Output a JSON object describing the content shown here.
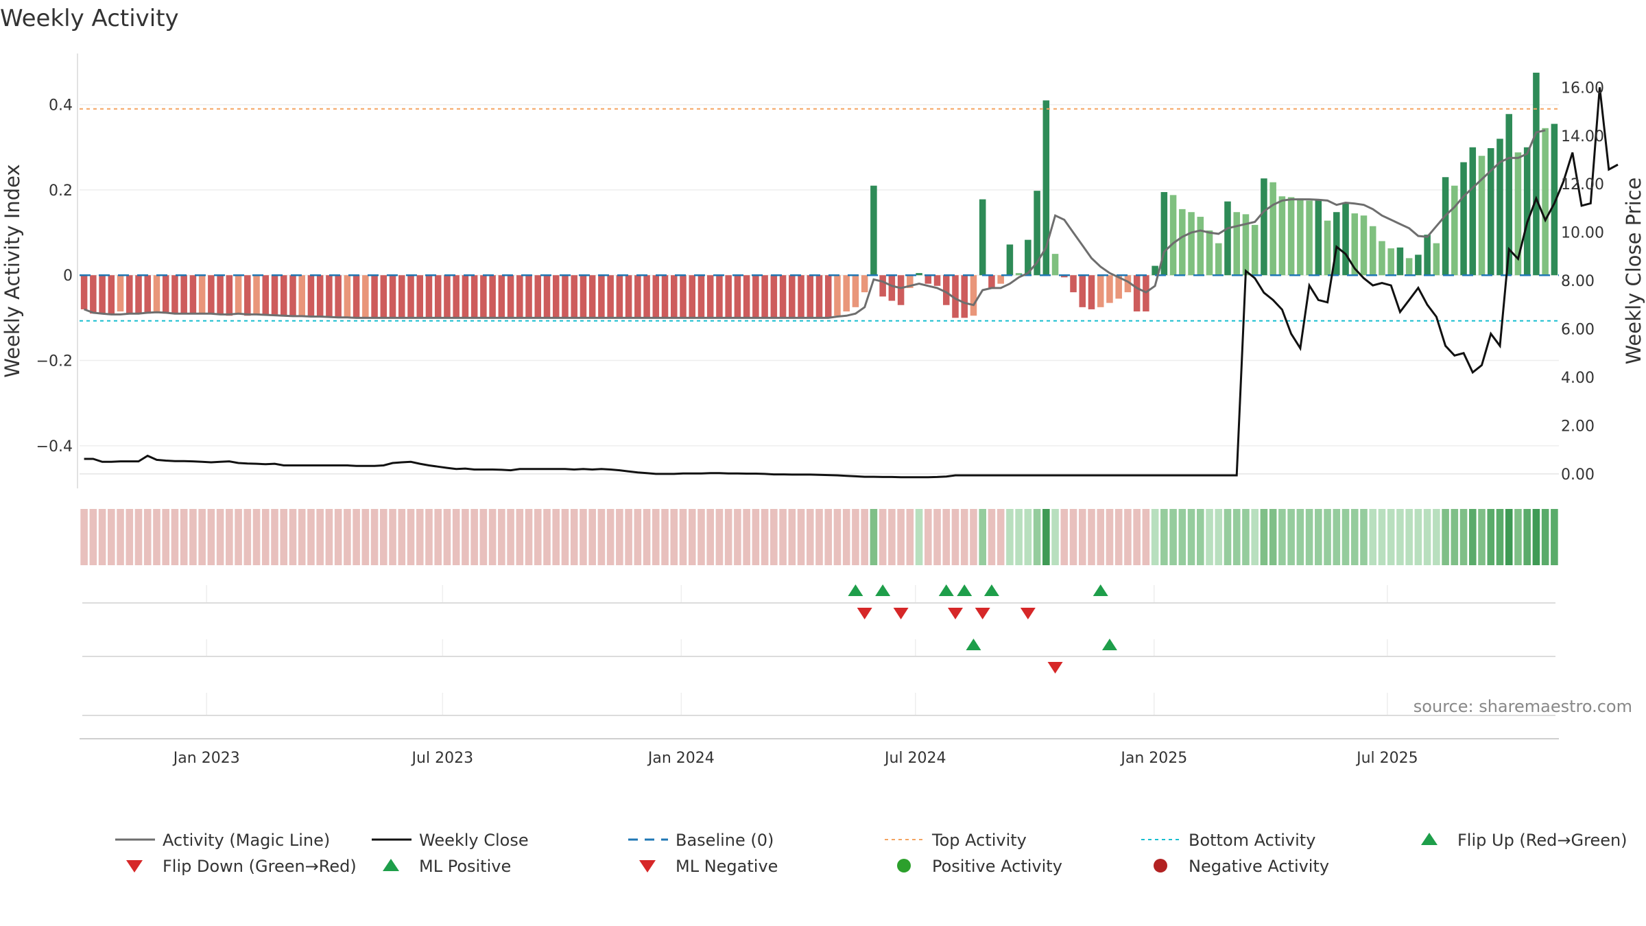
{
  "chart_data": {
    "type": "bar",
    "title": "Weekly Activity",
    "ylabel_left": "Weekly Activity Index",
    "ylabel_right": "Weekly Close Price",
    "ylim_left": [
      -0.5,
      0.52
    ],
    "ylim_right": [
      -0.6,
      17.4
    ],
    "yticks_left": [
      "0.4",
      "0.2",
      "0",
      "−0.2",
      "−0.4"
    ],
    "yticks_left_values": [
      0.4,
      0.2,
      0,
      -0.2,
      -0.4
    ],
    "yticks_right": [
      "16.00",
      "14.00",
      "12.00",
      "10.00",
      "8.00",
      "6.00",
      "4.00",
      "2.00",
      "0.00"
    ],
    "yticks_right_values": [
      16,
      14,
      12,
      10,
      8,
      6,
      4,
      2,
      0
    ],
    "xticks": [
      "Jan 2023",
      "Jul 2023",
      "Jan 2024",
      "Jul 2024",
      "Jan 2025",
      "Jul 2025"
    ],
    "xtick_weeks": [
      14,
      40,
      66.3,
      92.1,
      118.4,
      144.1
    ],
    "week_start": "2022-10-10",
    "top_activity": 0.39,
    "bottom_activity": -0.107,
    "baseline": 0,
    "source": "source: sharemaestro.com",
    "colors": {
      "strong_up": "#2e8b57",
      "mild_up": "#7fc07f",
      "strong_down": "#cd5c5c",
      "mild_down": "#e9967a",
      "magic_line": "#6e6e6e",
      "close_line": "#111111",
      "baseline": "#1f77b4",
      "top": "#f4a460",
      "bottom": "#17becf",
      "marker_up": "#1e9e4a",
      "marker_down": "#d62728",
      "dot_pos": "#2ca02c",
      "dot_neg": "#b22222"
    },
    "series": [
      {
        "name": "Activity",
        "values": [
          -0.08,
          -0.09,
          -0.09,
          -0.09,
          -0.085,
          -0.09,
          -0.09,
          -0.09,
          -0.088,
          -0.09,
          -0.09,
          -0.09,
          -0.092,
          -0.09,
          -0.09,
          -0.093,
          -0.095,
          -0.09,
          -0.095,
          -0.092,
          -0.094,
          -0.095,
          -0.095,
          -0.097,
          -0.095,
          -0.096,
          -0.097,
          -0.098,
          -0.1,
          -0.097,
          -0.1,
          -0.099,
          -0.1,
          -0.1,
          -0.1,
          -0.1,
          -0.1,
          -0.1,
          -0.1,
          -0.1,
          -0.1,
          -0.1,
          -0.1,
          -0.1,
          -0.1,
          -0.1,
          -0.1,
          -0.1,
          -0.1,
          -0.1,
          -0.1,
          -0.1,
          -0.1,
          -0.1,
          -0.1,
          -0.1,
          -0.1,
          -0.1,
          -0.1,
          -0.1,
          -0.1,
          -0.1,
          -0.1,
          -0.1,
          -0.1,
          -0.1,
          -0.1,
          -0.1,
          -0.1,
          -0.1,
          -0.1,
          -0.1,
          -0.1,
          -0.1,
          -0.1,
          -0.1,
          -0.1,
          -0.1,
          -0.1,
          -0.1,
          -0.1,
          -0.1,
          -0.1,
          -0.095,
          -0.085,
          -0.075,
          -0.04,
          0.21,
          -0.05,
          -0.06,
          -0.07,
          -0.03,
          0.005,
          -0.02,
          -0.025,
          -0.07,
          -0.1,
          -0.1,
          -0.095,
          0.178,
          -0.03,
          -0.02,
          0.072,
          0.005,
          0.083,
          0.198,
          0.41,
          0.05,
          -0.005,
          -0.04,
          -0.075,
          -0.08,
          -0.075,
          -0.065,
          -0.055,
          -0.04,
          -0.085,
          -0.085,
          0.022,
          0.195,
          0.188,
          0.155,
          0.148,
          0.137,
          0.105,
          0.075,
          0.173,
          0.148,
          0.143,
          0.118,
          0.227,
          0.218,
          0.185,
          0.183,
          0.18,
          0.175,
          0.175,
          0.128,
          0.148,
          0.17,
          0.145,
          0.14,
          0.115,
          0.08,
          0.063,
          0.065,
          0.04,
          0.048,
          0.095,
          0.075,
          0.23,
          0.21,
          0.265,
          0.3,
          0.28,
          0.298,
          0.32,
          0.378,
          0.288,
          0.3,
          0.475,
          0.345,
          0.355
        ]
      },
      {
        "name": "Activity (Magic Line)",
        "values": [
          -0.08,
          -0.088,
          -0.09,
          -0.092,
          -0.092,
          -0.09,
          -0.09,
          -0.088,
          -0.087,
          -0.088,
          -0.09,
          -0.09,
          -0.09,
          -0.09,
          -0.09,
          -0.092,
          -0.092,
          -0.09,
          -0.092,
          -0.092,
          -0.093,
          -0.094,
          -0.095,
          -0.096,
          -0.096,
          -0.097,
          -0.097,
          -0.098,
          -0.099,
          -0.099,
          -0.1,
          -0.1,
          -0.1,
          -0.1,
          -0.1,
          -0.1,
          -0.1,
          -0.1,
          -0.1,
          -0.1,
          -0.1,
          -0.1,
          -0.1,
          -0.1,
          -0.1,
          -0.1,
          -0.1,
          -0.1,
          -0.1,
          -0.1,
          -0.1,
          -0.1,
          -0.1,
          -0.1,
          -0.1,
          -0.1,
          -0.1,
          -0.1,
          -0.1,
          -0.1,
          -0.1,
          -0.1,
          -0.1,
          -0.1,
          -0.1,
          -0.1,
          -0.1,
          -0.1,
          -0.1,
          -0.1,
          -0.1,
          -0.1,
          -0.1,
          -0.1,
          -0.1,
          -0.1,
          -0.1,
          -0.1,
          -0.1,
          -0.1,
          -0.1,
          -0.1,
          -0.1,
          -0.097,
          -0.095,
          -0.09,
          -0.075,
          -0.01,
          -0.015,
          -0.025,
          -0.03,
          -0.025,
          -0.02,
          -0.025,
          -0.03,
          -0.04,
          -0.055,
          -0.065,
          -0.07,
          -0.035,
          -0.03,
          -0.03,
          -0.02,
          -0.005,
          0.005,
          0.03,
          0.065,
          0.14,
          0.13,
          0.1,
          0.07,
          0.04,
          0.02,
          0.005,
          -0.005,
          -0.015,
          -0.03,
          -0.04,
          -0.025,
          0.055,
          0.075,
          0.09,
          0.1,
          0.105,
          0.1,
          0.097,
          0.11,
          0.115,
          0.12,
          0.125,
          0.15,
          0.165,
          0.175,
          0.178,
          0.178,
          0.178,
          0.177,
          0.175,
          0.165,
          0.17,
          0.168,
          0.165,
          0.155,
          0.14,
          0.13,
          0.12,
          0.11,
          0.092,
          0.09,
          0.115,
          0.14,
          0.16,
          0.185,
          0.205,
          0.225,
          0.245,
          0.265,
          0.275,
          0.275,
          0.285,
          0.335,
          0.34
        ]
      },
      {
        "name": "Weekly Close",
        "values": [
          0.62,
          0.62,
          0.5,
          0.5,
          0.52,
          0.52,
          0.52,
          0.75,
          0.58,
          0.55,
          0.53,
          0.53,
          0.52,
          0.5,
          0.48,
          0.5,
          0.52,
          0.45,
          0.43,
          0.42,
          0.4,
          0.42,
          0.35,
          0.35,
          0.35,
          0.35,
          0.35,
          0.35,
          0.35,
          0.35,
          0.33,
          0.33,
          0.33,
          0.35,
          0.45,
          0.48,
          0.5,
          0.42,
          0.35,
          0.3,
          0.25,
          0.2,
          0.22,
          0.18,
          0.18,
          0.18,
          0.17,
          0.15,
          0.2,
          0.2,
          0.2,
          0.2,
          0.2,
          0.2,
          0.18,
          0.2,
          0.18,
          0.2,
          0.18,
          0.15,
          0.1,
          0.06,
          0.03,
          0.0,
          0.0,
          0.0,
          0.02,
          0.02,
          0.02,
          0.03,
          0.03,
          0.02,
          0.02,
          0.01,
          0.01,
          0.0,
          -0.02,
          -0.02,
          -0.03,
          -0.03,
          -0.03,
          -0.04,
          -0.05,
          -0.06,
          -0.08,
          -0.1,
          -0.12,
          -0.12,
          -0.13,
          -0.13,
          -0.14,
          -0.14,
          -0.14,
          -0.14,
          -0.13,
          -0.11,
          -0.06,
          -0.06,
          -0.06,
          -0.06,
          -0.06,
          -0.06,
          -0.06,
          -0.06,
          -0.06,
          -0.06,
          -0.06,
          -0.06,
          -0.06,
          -0.06,
          -0.06,
          -0.06,
          -0.06,
          -0.06,
          -0.06,
          -0.06,
          -0.06,
          -0.06,
          -0.06,
          -0.06,
          -0.06,
          -0.06,
          -0.06,
          -0.06,
          -0.06,
          -0.06,
          -0.06,
          -0.06,
          8.4,
          8.1,
          7.5,
          7.2,
          6.8,
          5.8,
          5.2,
          7.8,
          7.2,
          7.1,
          9.4,
          9.1,
          8.5,
          8.1,
          7.8,
          7.9,
          7.8,
          6.7,
          7.2,
          7.7,
          7.0,
          6.5,
          5.3,
          4.9,
          5.0,
          4.2,
          4.5,
          5.8,
          5.3,
          9.3,
          8.9,
          10.4,
          11.4,
          10.5,
          11.2,
          12.1,
          13.3,
          11.1,
          11.2,
          16.0,
          12.6,
          12.8
        ]
      }
    ],
    "strength": {
      "name": "Weekly strength strip",
      "start": 0,
      "count": 163
    },
    "signals": {
      "flip_up_weeks": [
        85.5,
        88.5,
        95.5,
        97.5,
        100.5,
        112.5
      ],
      "flip_down_weeks": [
        86.5,
        90.5,
        96.5,
        99.5,
        104.5
      ],
      "ml_positive_weeks": [
        98.5,
        113.5
      ],
      "ml_negative_weeks": [
        107.5
      ]
    },
    "legend": [
      {
        "label": "Activity (Magic Line)",
        "symbol": "line-gray"
      },
      {
        "label": "Weekly Close",
        "symbol": "line-black"
      },
      {
        "label": "Baseline (0)",
        "symbol": "dash-blue"
      },
      {
        "label": "Top Activity",
        "symbol": "dot-orange"
      },
      {
        "label": "Bottom Activity",
        "symbol": "dot-cyan"
      },
      {
        "label": "Flip Up (Red→Green)",
        "symbol": "tri-up-green"
      },
      {
        "label": "Flip Down (Green→Red)",
        "symbol": "tri-down-red"
      },
      {
        "label": "ML Positive",
        "symbol": "tri-up-green"
      },
      {
        "label": "ML Negative",
        "symbol": "tri-down-red"
      },
      {
        "label": "Positive Activity",
        "symbol": "circle-green"
      },
      {
        "label": "Negative Activity",
        "symbol": "circle-darkred"
      }
    ]
  }
}
